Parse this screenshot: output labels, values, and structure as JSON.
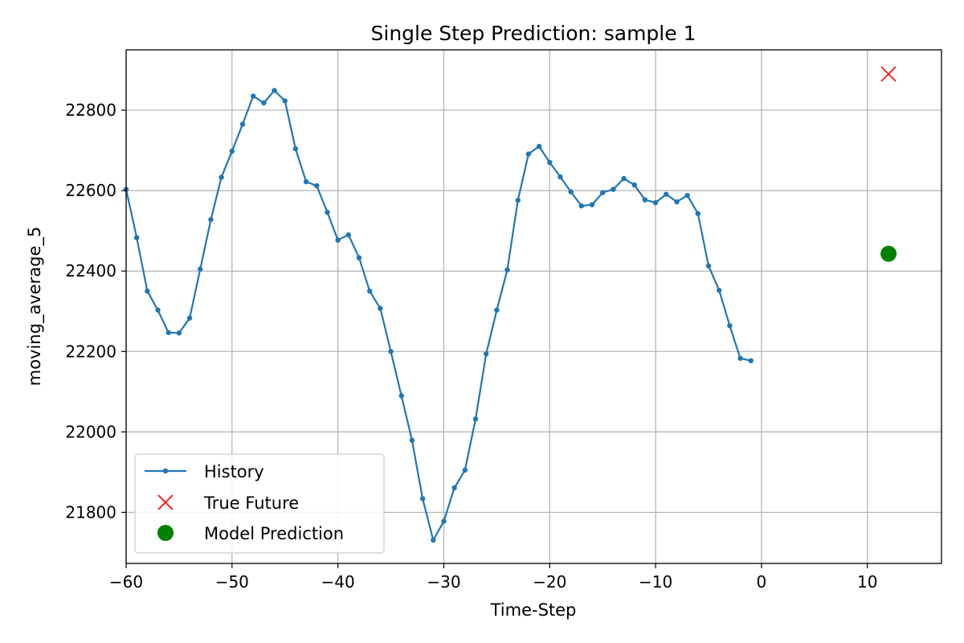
{
  "chart_data": {
    "type": "line",
    "title": "Single Step Prediction: sample 1",
    "xlabel": "Time-Step",
    "ylabel": "moving_average_5",
    "xlim": [
      -60,
      17
    ],
    "ylim": [
      21673,
      22950
    ],
    "xticks": [
      -60,
      -50,
      -40,
      -30,
      -20,
      -10,
      0,
      10
    ],
    "xtick_labels": [
      "−60",
      "−50",
      "−40",
      "−30",
      "−20",
      "−10",
      "0",
      "10"
    ],
    "yticks": [
      21800,
      22000,
      22200,
      22400,
      22600,
      22800
    ],
    "ytick_labels": [
      "21800",
      "22000",
      "22200",
      "22400",
      "22600",
      "22800"
    ],
    "grid": true,
    "legend_position": "lower-left",
    "series": [
      {
        "name": "History",
        "kind": "line-with-points",
        "color": "#1f77b4",
        "x": [
          -60,
          -59,
          -58,
          -57,
          -56,
          -55,
          -54,
          -53,
          -52,
          -51,
          -50,
          -49,
          -48,
          -47,
          -46,
          -45,
          -44,
          -43,
          -42,
          -41,
          -40,
          -39,
          -38,
          -37,
          -36,
          -35,
          -34,
          -33,
          -32,
          -31,
          -30,
          -29,
          -28,
          -27,
          -26,
          -25,
          -24,
          -23,
          -22,
          -21,
          -20,
          -19,
          -18,
          -17,
          -16,
          -15,
          -14,
          -13,
          -12,
          -11,
          -10,
          -9,
          -8,
          -7,
          -6,
          -5,
          -4,
          -3,
          -2,
          -1
        ],
        "y": [
          22603,
          22483,
          22350,
          22303,
          22247,
          22246,
          22283,
          22405,
          22528,
          22633,
          22698,
          22765,
          22835,
          22818,
          22849,
          22823,
          22704,
          22622,
          22612,
          22546,
          22477,
          22490,
          22433,
          22350,
          22307,
          22200,
          22090,
          21979,
          21834,
          21731,
          21778,
          21861,
          21905,
          22032,
          22194,
          22303,
          22403,
          22576,
          22691,
          22710,
          22670,
          22634,
          22597,
          22562,
          22565,
          22595,
          22603,
          22630,
          22614,
          22577,
          22570,
          22591,
          22572,
          22588,
          22543,
          22413,
          22352,
          22264,
          22183,
          22177
        ]
      },
      {
        "name": "True Future",
        "kind": "x-marker",
        "color": "#ff0000",
        "x": [
          12
        ],
        "y": [
          22890
        ]
      },
      {
        "name": "Model Prediction",
        "kind": "circle-marker",
        "color": "#008000",
        "x": [
          12
        ],
        "y": [
          22443
        ]
      }
    ]
  }
}
